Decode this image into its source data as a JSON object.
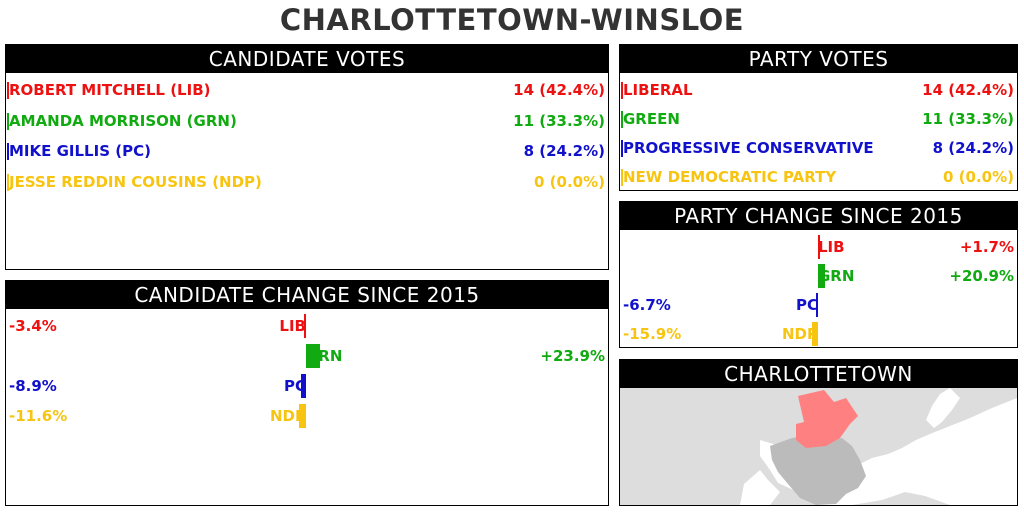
{
  "title": "CHARLOTTETOWN-WINSLOE",
  "candidate_votes": {
    "heading": "CANDIDATE VOTES",
    "rows": [
      {
        "name": "ROBERT MITCHELL (LIB)",
        "value": "14 (42.4%)",
        "color": "#ee1111"
      },
      {
        "name": "AMANDA MORRISON (GRN)",
        "value": "11 (33.3%)",
        "color": "#11aa11"
      },
      {
        "name": "MIKE GILLIS (PC)",
        "value": "8 (24.2%)",
        "color": "#1111cc"
      },
      {
        "name": "JESSE REDDIN COUSINS (NDP)",
        "value": "0 (0.0%)",
        "color": "#f7c511"
      }
    ]
  },
  "party_votes": {
    "heading": "PARTY VOTES",
    "rows": [
      {
        "name": "LIBERAL",
        "value": "14 (42.4%)",
        "color": "#ee1111"
      },
      {
        "name": "GREEN",
        "value": "11 (33.3%)",
        "color": "#11aa11"
      },
      {
        "name": "PROGRESSIVE CONSERVATIVE",
        "value": "8 (24.2%)",
        "color": "#1111cc"
      },
      {
        "name": "NEW DEMOCRATIC PARTY",
        "value": "0 (0.0%)",
        "color": "#f7c511"
      }
    ]
  },
  "candidate_change": {
    "heading": "CANDIDATE CHANGE SINCE 2015",
    "rows": [
      {
        "label": "LIB",
        "change": -3.4,
        "text": "-3.4%",
        "color": "#ee1111"
      },
      {
        "label": "GRN",
        "change": 23.9,
        "text": "+23.9%",
        "color": "#11aa11"
      },
      {
        "label": "PC",
        "change": -8.9,
        "text": "-8.9%",
        "color": "#1111cc"
      },
      {
        "label": "NDP",
        "change": -11.6,
        "text": "-11.6%",
        "color": "#f7c511"
      }
    ]
  },
  "party_change": {
    "heading": "PARTY CHANGE SINCE 2015",
    "rows": [
      {
        "label": "LIB",
        "change": 1.7,
        "text": "+1.7%",
        "color": "#ee1111"
      },
      {
        "label": "GRN",
        "change": 20.9,
        "text": "+20.9%",
        "color": "#11aa11"
      },
      {
        "label": "PC",
        "change": -6.7,
        "text": "-6.7%",
        "color": "#1111cc"
      },
      {
        "label": "NDP",
        "change": -15.9,
        "text": "-15.9%",
        "color": "#f7c511"
      }
    ]
  },
  "map": {
    "heading": "CHARLOTTETOWN",
    "land_color": "#dddddd",
    "city_color": "#bbbbbb",
    "district_color": "#ff8080"
  },
  "chart_data": [
    {
      "type": "bar",
      "title": "CANDIDATE VOTES",
      "categories": [
        "ROBERT MITCHELL (LIB)",
        "AMANDA MORRISON (GRN)",
        "MIKE GILLIS (PC)",
        "JESSE REDDIN COUSINS (NDP)"
      ],
      "values": [
        14,
        11,
        8,
        0
      ],
      "percent": [
        42.4,
        33.3,
        24.2,
        0.0
      ]
    },
    {
      "type": "bar",
      "title": "PARTY VOTES",
      "categories": [
        "LIBERAL",
        "GREEN",
        "PROGRESSIVE CONSERVATIVE",
        "NEW DEMOCRATIC PARTY"
      ],
      "values": [
        14,
        11,
        8,
        0
      ],
      "percent": [
        42.4,
        33.3,
        24.2,
        0.0
      ]
    },
    {
      "type": "bar",
      "title": "CANDIDATE CHANGE SINCE 2015",
      "categories": [
        "LIB",
        "GRN",
        "PC",
        "NDP"
      ],
      "values": [
        -3.4,
        23.9,
        -8.9,
        -11.6
      ]
    },
    {
      "type": "bar",
      "title": "PARTY CHANGE SINCE 2015",
      "categories": [
        "LIB",
        "GRN",
        "PC",
        "NDP"
      ],
      "values": [
        1.7,
        20.9,
        -6.7,
        -15.9
      ]
    }
  ]
}
